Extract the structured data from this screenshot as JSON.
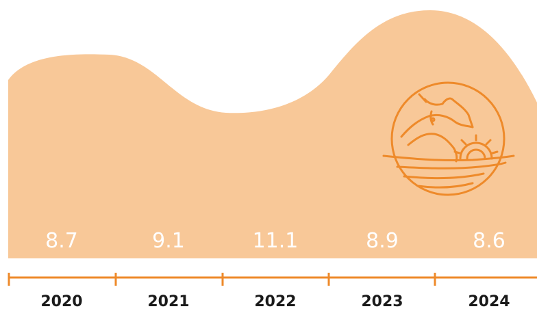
{
  "chart_data": {
    "type": "area",
    "categories": [
      "2020",
      "2021",
      "2022",
      "2023",
      "2024"
    ],
    "values": [
      8.7,
      9.1,
      11.1,
      8.9,
      8.6
    ],
    "value_labels": [
      "8.7",
      "9.1",
      "11.1",
      "8.9",
      "8.6"
    ],
    "title": "",
    "xlabel": "",
    "ylabel": "",
    "grid": false,
    "colors": {
      "area": "#f8c898",
      "axis": "#ee8a2a",
      "icon": "#ee8a2a",
      "value_text": "#ffffff",
      "year_text": "#1a1a1a"
    },
    "icon": "livestock-farm-gear-icon"
  }
}
